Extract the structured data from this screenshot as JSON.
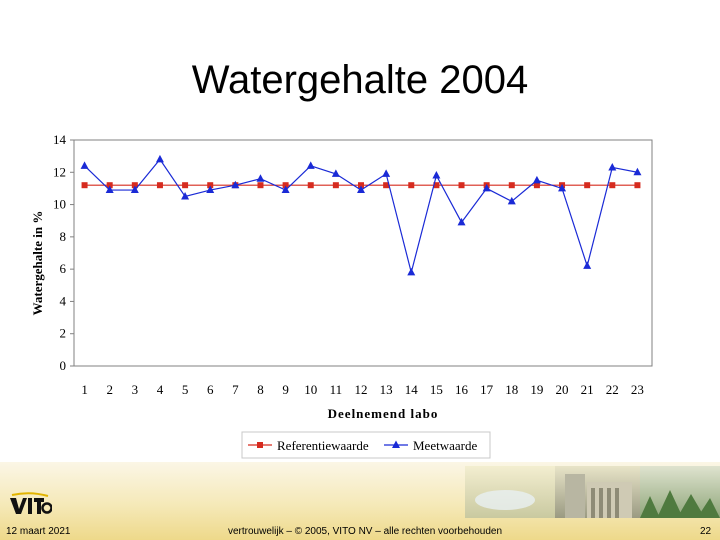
{
  "slide": {
    "title": "Watergehalte 2004",
    "footer_date": "12 maart 2021",
    "footer_confidential": "vertrouwelijk – © 2005, VITO NV – alle rechten voorbehouden",
    "page_number": "22"
  },
  "colors": {
    "referentie": "#d62b1f",
    "meetwaarde": "#1a2ad6",
    "axis": "#808080"
  },
  "chart_data": {
    "type": "line",
    "title": "",
    "xlabel": "Deelnemend labo",
    "ylabel": "Watergehalte in %",
    "ylim": [
      0,
      14
    ],
    "yticks": [
      0,
      2,
      4,
      6,
      8,
      10,
      12,
      14
    ],
    "categories": [
      "1",
      "2",
      "3",
      "4",
      "5",
      "6",
      "7",
      "8",
      "9",
      "10",
      "11",
      "12",
      "13",
      "14",
      "15",
      "16",
      "17",
      "18",
      "19",
      "20",
      "21",
      "22",
      "23"
    ],
    "series": [
      {
        "name": "Referentiewaarde",
        "marker": "square",
        "values": [
          11.2,
          11.2,
          11.2,
          11.2,
          11.2,
          11.2,
          11.2,
          11.2,
          11.2,
          11.2,
          11.2,
          11.2,
          11.2,
          11.2,
          11.2,
          11.2,
          11.2,
          11.2,
          11.2,
          11.2,
          11.2,
          11.2,
          11.2
        ]
      },
      {
        "name": "Meetwaarde",
        "marker": "triangle",
        "values": [
          12.4,
          10.9,
          10.9,
          12.8,
          10.5,
          10.9,
          11.2,
          11.6,
          10.9,
          12.4,
          11.9,
          10.9,
          11.9,
          5.8,
          11.8,
          8.9,
          11.0,
          10.2,
          11.5,
          11.0,
          6.2,
          12.3,
          12.0
        ]
      }
    ],
    "legend_position": "bottom"
  }
}
